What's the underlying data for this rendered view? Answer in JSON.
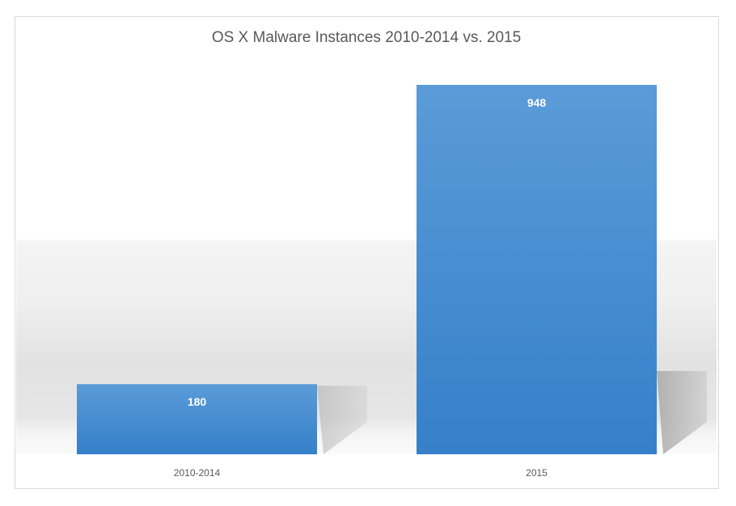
{
  "chart_data": {
    "type": "bar",
    "title": "OS X Malware Instances 2010-2014 vs. 2015",
    "categories": [
      "2010-2014",
      "2015"
    ],
    "values": [
      180,
      948
    ],
    "data_labels": [
      "180",
      "948"
    ],
    "xlabel": "",
    "ylabel": "",
    "ylim": [
      0,
      948
    ],
    "grid": false,
    "legend": "none",
    "bar_color": "#4a90d4"
  }
}
